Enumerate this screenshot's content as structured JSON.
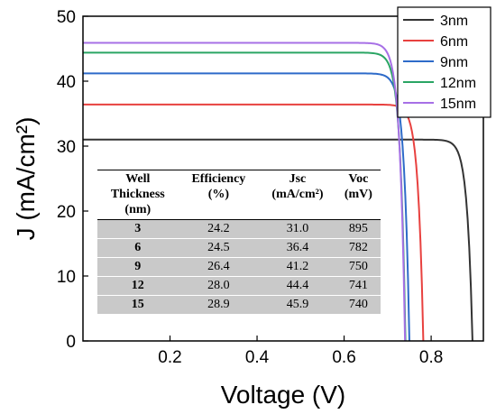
{
  "chart_data": {
    "type": "line",
    "title": "",
    "xlabel": "Voltage (V)",
    "ylabel": "J (mA/cm²)",
    "xlim": [
      0,
      0.92
    ],
    "ylim": [
      0,
      50
    ],
    "x_ticks": [
      "0.2",
      "0.4",
      "0.6",
      "0.8"
    ],
    "y_ticks": [
      "0",
      "10",
      "20",
      "30",
      "40",
      "50"
    ],
    "legend_position": "top-right",
    "series": [
      {
        "name": "3nm",
        "color": "#333333",
        "jsc": 31.0,
        "voc": 0.895
      },
      {
        "name": "6nm",
        "color": "#e8413f",
        "jsc": 36.4,
        "voc": 0.782
      },
      {
        "name": "9nm",
        "color": "#2e6bc9",
        "jsc": 41.2,
        "voc": 0.75
      },
      {
        "name": "12nm",
        "color": "#2aa564",
        "jsc": 44.4,
        "voc": 0.741
      },
      {
        "name": "15nm",
        "color": "#a770e6",
        "jsc": 45.9,
        "voc": 0.74
      }
    ],
    "table": {
      "headers": [
        [
          "Well",
          "Thickness",
          "(nm)"
        ],
        [
          "Efficiency",
          "(%)"
        ],
        [
          "Jsc",
          "(mA/cm²)"
        ],
        [
          "Voc",
          "(mV)"
        ]
      ],
      "rows": [
        [
          "3",
          "24.2",
          "31.0",
          "895"
        ],
        [
          "6",
          "24.5",
          "36.4",
          "782"
        ],
        [
          "9",
          "26.4",
          "41.2",
          "750"
        ],
        [
          "12",
          "28.0",
          "44.4",
          "741"
        ],
        [
          "15",
          "28.9",
          "45.9",
          "740"
        ]
      ]
    }
  }
}
